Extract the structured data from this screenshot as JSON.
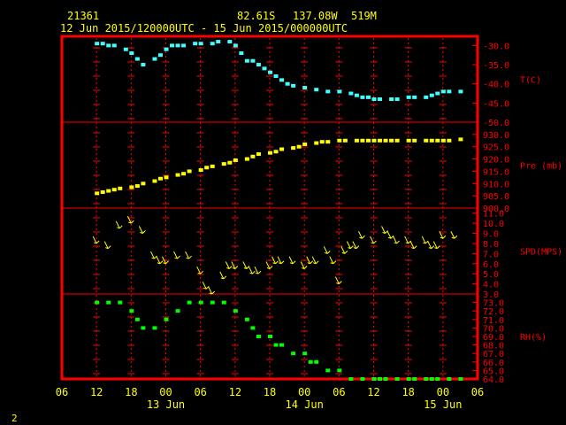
{
  "header": {
    "station": "21361",
    "lat": "82.61S",
    "lon": "137.08W",
    "elev": "519M",
    "time_range": "12 Jun 2015/120000UTC - 15 Jun 2015/000000UTC"
  },
  "footer": {
    "page_num": "2"
  },
  "colors": {
    "frame": "#ff0000",
    "axis_text": "#ffff00",
    "temp": "#40ffff",
    "pres": "#ffff00",
    "wind": "#ffff00",
    "rh": "#00ff00",
    "grid": "#ff0000"
  },
  "chart_data": {
    "type": "line",
    "x_axis": {
      "unit": "hour_of_day",
      "tick_labels": [
        "06",
        "12",
        "18",
        "00",
        "06",
        "12",
        "18",
        "00",
        "06",
        "12",
        "18",
        "00",
        "06"
      ],
      "day_labels": [
        "13 Jun",
        "14 Jun",
        "15 Jun"
      ],
      "range": [
        "12 Jun 2015 06UTC",
        "15 Jun 2015 06UTC"
      ]
    },
    "panels": [
      {
        "label": "T(C)",
        "ticks": [
          "-30.0",
          "-35.0",
          "-40.0",
          "-45.0",
          "-50.0"
        ],
        "ylim": [
          -50,
          -27.6
        ],
        "series": [
          {
            "color": "temp",
            "points": [
              [
                12,
                -29.5
              ],
              [
                13,
                -29.5
              ],
              [
                14,
                -30
              ],
              [
                15,
                -30
              ],
              [
                17,
                -31
              ],
              [
                18,
                -32
              ],
              [
                19,
                -33.5
              ],
              [
                20,
                -35
              ],
              [
                22,
                -33.5
              ],
              [
                23,
                -32.5
              ],
              [
                24,
                -31
              ],
              [
                25,
                -30
              ],
              [
                26,
                -30
              ],
              [
                27,
                -30
              ],
              [
                29,
                -29.5
              ],
              [
                30,
                -29.5
              ],
              [
                32,
                -29.5
              ],
              [
                33,
                -29
              ],
              [
                35,
                -29
              ],
              [
                36,
                -30
              ],
              [
                37,
                -32
              ],
              [
                38,
                -34
              ],
              [
                39,
                -34
              ],
              [
                40,
                -35
              ],
              [
                41,
                -36
              ],
              [
                42,
                -37
              ],
              [
                43,
                -38
              ],
              [
                44,
                -39
              ],
              [
                45,
                -40
              ],
              [
                46,
                -40.5
              ],
              [
                48,
                -41
              ],
              [
                50,
                -41.5
              ],
              [
                52,
                -42
              ],
              [
                54,
                -42
              ],
              [
                56,
                -42.5
              ],
              [
                57,
                -43
              ],
              [
                58,
                -43.5
              ],
              [
                59,
                -43.5
              ],
              [
                60,
                -44
              ],
              [
                61,
                -44
              ],
              [
                63,
                -44
              ],
              [
                64,
                -44
              ],
              [
                66,
                -43.5
              ],
              [
                67,
                -43.5
              ],
              [
                69,
                -43.5
              ],
              [
                70,
                -43
              ],
              [
                71,
                -42.5
              ],
              [
                72,
                -42
              ],
              [
                73,
                -42
              ],
              [
                75,
                -42
              ]
            ]
          }
        ]
      },
      {
        "label": "Pre (mb)",
        "ticks": [
          "930.0",
          "925.0",
          "920.0",
          "915.0",
          "910.0",
          "905.0",
          "900.0"
        ],
        "ylim": [
          900,
          935
        ],
        "series": [
          {
            "color": "pres",
            "points": [
              [
                12,
                906
              ],
              [
                13,
                906.5
              ],
              [
                14,
                907
              ],
              [
                15,
                907.5
              ],
              [
                16,
                908
              ],
              [
                18,
                908.5
              ],
              [
                19,
                909
              ],
              [
                20,
                910
              ],
              [
                22,
                911
              ],
              [
                23,
                912
              ],
              [
                24,
                912.5
              ],
              [
                26,
                913.5
              ],
              [
                27,
                914
              ],
              [
                28,
                915
              ],
              [
                30,
                915.5
              ],
              [
                31,
                916.5
              ],
              [
                32,
                917
              ],
              [
                34,
                918
              ],
              [
                35,
                918.5
              ],
              [
                36,
                919.5
              ],
              [
                38,
                920
              ],
              [
                39,
                921
              ],
              [
                40,
                922
              ],
              [
                42,
                922.5
              ],
              [
                43,
                923
              ],
              [
                44,
                924
              ],
              [
                46,
                924.5
              ],
              [
                47,
                925
              ],
              [
                48,
                926
              ],
              [
                50,
                926.5
              ],
              [
                51,
                927
              ],
              [
                52,
                927
              ],
              [
                54,
                927.5
              ],
              [
                55,
                927.5
              ],
              [
                57,
                927.5
              ],
              [
                58,
                927.5
              ],
              [
                59,
                927.5
              ],
              [
                60,
                927.5
              ],
              [
                61,
                927.5
              ],
              [
                62,
                927.5
              ],
              [
                63,
                927.5
              ],
              [
                64,
                927.5
              ],
              [
                66,
                927.5
              ],
              [
                67,
                927.5
              ],
              [
                69,
                927.5
              ],
              [
                70,
                927.5
              ],
              [
                71,
                927.5
              ],
              [
                72,
                927.5
              ],
              [
                73,
                927.5
              ],
              [
                75,
                928
              ]
            ]
          }
        ]
      },
      {
        "label": "SPD(MPS)",
        "ticks": [
          "11.0",
          "10.0",
          "9.0",
          "8.0",
          "7.0",
          "6.0",
          "5.0",
          "4.0",
          "3.0"
        ],
        "ylim": [
          3,
          11.5
        ],
        "series": [
          {
            "color": "wind",
            "type": "wind_barb",
            "points": [
              [
                12,
                8
              ],
              [
                14,
                7.5
              ],
              [
                16,
                9.5
              ],
              [
                18,
                10
              ],
              [
                20,
                9
              ],
              [
                22,
                6.5
              ],
              [
                23,
                6
              ],
              [
                24,
                6
              ],
              [
                26,
                6.5
              ],
              [
                28,
                6.5
              ],
              [
                30,
                5
              ],
              [
                31,
                3.5
              ],
              [
                32,
                3
              ],
              [
                34,
                4.5
              ],
              [
                35,
                5.5
              ],
              [
                36,
                5.5
              ],
              [
                38,
                5.5
              ],
              [
                39,
                5
              ],
              [
                40,
                5
              ],
              [
                42,
                5.5
              ],
              [
                43,
                6
              ],
              [
                44,
                6
              ],
              [
                46,
                6
              ],
              [
                48,
                5.5
              ],
              [
                49,
                6
              ],
              [
                50,
                6
              ],
              [
                52,
                7
              ],
              [
                53,
                6
              ],
              [
                54,
                4
              ],
              [
                55,
                7
              ],
              [
                56,
                7.5
              ],
              [
                57,
                7.5
              ],
              [
                58,
                8.5
              ],
              [
                60,
                8
              ],
              [
                62,
                9
              ],
              [
                63,
                8.5
              ],
              [
                64,
                8
              ],
              [
                66,
                8
              ],
              [
                67,
                7.5
              ],
              [
                69,
                8
              ],
              [
                70,
                7.5
              ],
              [
                71,
                7.5
              ],
              [
                72,
                8.5
              ],
              [
                74,
                8.5
              ]
            ]
          }
        ]
      },
      {
        "label": "RH(%)",
        "ticks": [
          "73.0",
          "72.0",
          "71.0",
          "70.0",
          "69.0",
          "68.0",
          "67.0",
          "66.0",
          "65.0",
          "64.0"
        ],
        "ylim": [
          64,
          74
        ],
        "series": [
          {
            "color": "rh",
            "points": [
              [
                12,
                73
              ],
              [
                14,
                73
              ],
              [
                16,
                73
              ],
              [
                18,
                72
              ],
              [
                19,
                71
              ],
              [
                20,
                70
              ],
              [
                22,
                70
              ],
              [
                24,
                71
              ],
              [
                26,
                72
              ],
              [
                28,
                73
              ],
              [
                30,
                73
              ],
              [
                32,
                73
              ],
              [
                34,
                73
              ],
              [
                36,
                72
              ],
              [
                38,
                71
              ],
              [
                39,
                70
              ],
              [
                40,
                69
              ],
              [
                42,
                69
              ],
              [
                43,
                68
              ],
              [
                44,
                68
              ],
              [
                46,
                67
              ],
              [
                48,
                67
              ],
              [
                49,
                66
              ],
              [
                50,
                66
              ],
              [
                52,
                65
              ],
              [
                54,
                65
              ],
              [
                56,
                64
              ],
              [
                58,
                64
              ],
              [
                60,
                64
              ],
              [
                61,
                64
              ],
              [
                62,
                64
              ],
              [
                64,
                64
              ],
              [
                66,
                64
              ],
              [
                67,
                64
              ],
              [
                69,
                64
              ],
              [
                70,
                64
              ],
              [
                71,
                64
              ],
              [
                73,
                64
              ],
              [
                75,
                64
              ]
            ]
          }
        ]
      }
    ]
  }
}
